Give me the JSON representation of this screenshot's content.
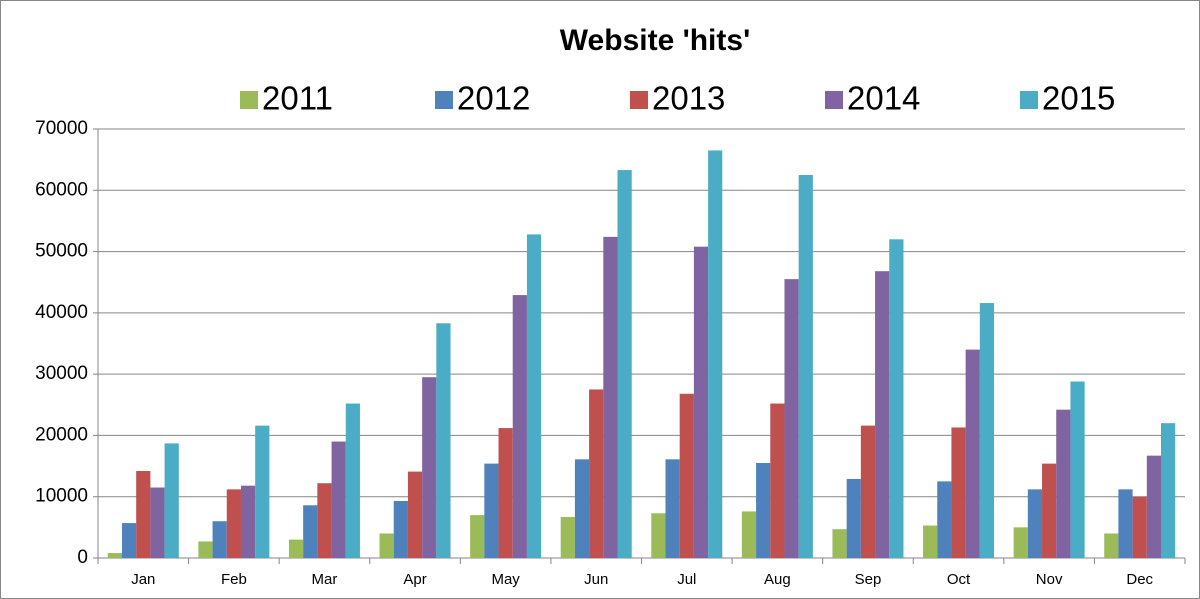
{
  "chart_data": {
    "type": "bar",
    "title": "Website 'hits'",
    "categories": [
      "Jan",
      "Feb",
      "Mar",
      "Apr",
      "May",
      "Jun",
      "Jul",
      "Aug",
      "Sep",
      "Oct",
      "Nov",
      "Dec"
    ],
    "series": [
      {
        "name": "2011",
        "color": "#9bbb59",
        "values": [
          800,
          2700,
          3000,
          4000,
          7000,
          6700,
          7300,
          7600,
          4700,
          5300,
          5000,
          4000
        ]
      },
      {
        "name": "2012",
        "color": "#4f81bd",
        "values": [
          5700,
          6000,
          8600,
          9300,
          15400,
          16100,
          16100,
          15500,
          12900,
          12500,
          11200,
          11200
        ]
      },
      {
        "name": "2013",
        "color": "#c0504d",
        "values": [
          14200,
          11200,
          12200,
          14100,
          21200,
          27500,
          26800,
          25200,
          21600,
          21300,
          15400,
          10000
        ]
      },
      {
        "name": "2014",
        "color": "#8064a2",
        "values": [
          11500,
          11800,
          19000,
          29500,
          42900,
          52400,
          50800,
          45500,
          46800,
          34000,
          24200,
          16700
        ]
      },
      {
        "name": "2015",
        "color": "#4bacc6",
        "values": [
          18700,
          21600,
          25200,
          38300,
          52800,
          63300,
          66500,
          62500,
          52000,
          41600,
          28800,
          22000
        ]
      }
    ],
    "ylim": [
      0,
      70000
    ],
    "yticks": [
      0,
      10000,
      20000,
      30000,
      40000,
      50000,
      60000,
      70000
    ],
    "grid": true,
    "legend": "top"
  }
}
